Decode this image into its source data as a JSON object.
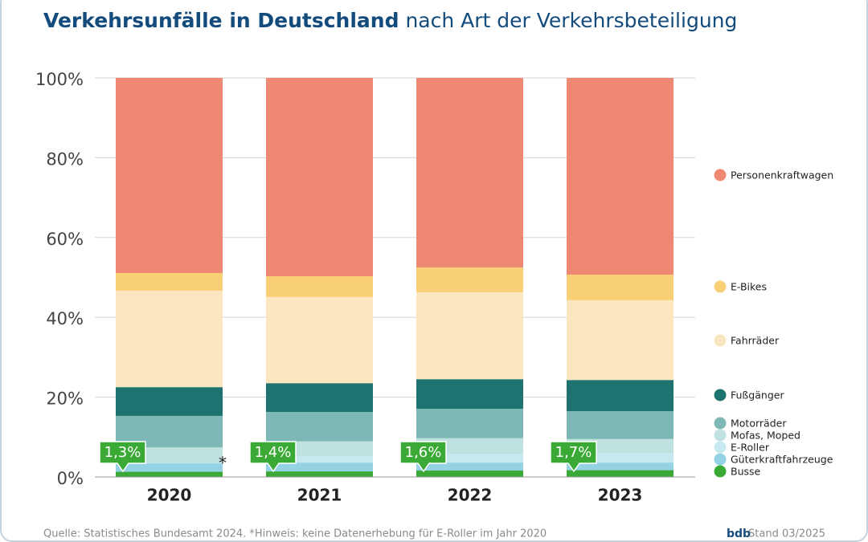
{
  "chart_data": {
    "type": "stacked-bar",
    "title": "Verkehrsunfälle in Deutschland",
    "subtitle": "nach Art der Verkehrsbeteiligung",
    "categories": [
      "2020",
      "2021",
      "2022",
      "2023"
    ],
    "series": [
      {
        "name": "Busse",
        "color": "#3aa935",
        "values": [
          1.3,
          1.4,
          1.6,
          1.7
        ],
        "value_labels": [
          "1,3%",
          "1,4%",
          "1,6%",
          "1,7%"
        ]
      },
      {
        "name": "Güterkraftfahrzeuge",
        "color": "#93d3e4",
        "values": [
          2.1,
          2.2,
          2.0,
          1.9
        ]
      },
      {
        "name": "E-Roller",
        "color": "#c6e8ef",
        "values": [
          null,
          1.6,
          2.2,
          2.4
        ]
      },
      {
        "name": "Mofas, Moped",
        "color": "#bfe2e0",
        "values": [
          4.0,
          3.7,
          3.9,
          3.5
        ]
      },
      {
        "name": "Motorräder",
        "color": "#7db7b6",
        "values": [
          7.9,
          7.4,
          7.4,
          7.0
        ]
      },
      {
        "name": "Fußgänger",
        "color": "#1e726f",
        "values": [
          7.2,
          7.2,
          7.4,
          7.8
        ]
      },
      {
        "name": "Fahrräder",
        "color": "#fce6bf",
        "values": [
          24.2,
          21.6,
          21.8,
          20.0
        ]
      },
      {
        "name": "E-Bikes",
        "color": "#f9cf75",
        "values": [
          4.4,
          5.2,
          6.2,
          6.4
        ]
      },
      {
        "name": "Personenkraftwagen",
        "color": "#ef8873",
        "values": [
          48.9,
          49.7,
          47.5,
          49.3
        ]
      }
    ],
    "ylim": [
      0,
      100
    ],
    "yticks": [
      {
        "value": 0,
        "label": "0%"
      },
      {
        "value": 20,
        "label": "20%"
      },
      {
        "value": 40,
        "label": "40%"
      },
      {
        "value": 60,
        "label": "60%"
      },
      {
        "value": 80,
        "label": "80%"
      },
      {
        "value": 100,
        "label": "100%"
      }
    ],
    "grid": true,
    "legend": "right",
    "annotation": "*",
    "source": "Quelle: Statistisches Bundesamt 2024. *Hinweis: keine Datenerhebung für E-Roller im Jahr 2020",
    "logo": "bdb",
    "stand": "Stand 03/2025"
  }
}
